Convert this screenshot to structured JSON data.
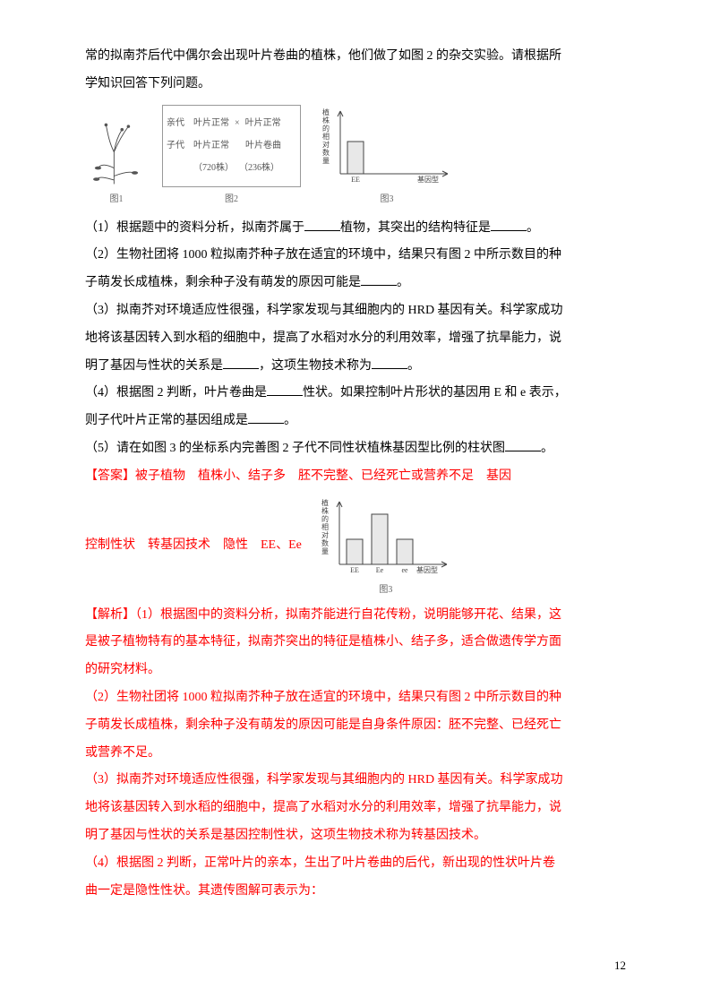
{
  "intro": {
    "line1": "常的拟南芥后代中偶尔会出现叶片卷曲的植株，他们做了如图 2 的杂交实验。请根据所",
    "line2": "学知识回答下列问题。"
  },
  "crossbox": {
    "parent_lbl": "亲代",
    "parent_l": "叶片正常",
    "x": "×",
    "parent_r": "叶片正常",
    "child_lbl": "子代",
    "child_l": "叶片正常",
    "child_r": "叶片卷曲",
    "count_l": "（720株）",
    "count_r": "（236株）"
  },
  "captions": {
    "fig1": "图1",
    "fig2": "图2",
    "fig3": "图3"
  },
  "chart1": {
    "ylabel_chars": [
      "植",
      "株",
      "的",
      "相",
      "对",
      "数",
      "量"
    ],
    "bars": [
      {
        "label": "EE",
        "h": 36
      }
    ],
    "xaxis_label": "基因型",
    "axis_color": "#444",
    "bar_fill": "#e8e8e8",
    "bar_stroke": "#444"
  },
  "chart2": {
    "ylabel_chars": [
      "植",
      "株",
      "的",
      "相",
      "对",
      "数",
      "量"
    ],
    "bars": [
      {
        "label": "EE",
        "h": 28
      },
      {
        "label": "Ee",
        "h": 56
      },
      {
        "label": "ee",
        "h": 28
      }
    ],
    "xaxis_label": "基因型",
    "axis_color": "#444",
    "bar_fill": "#e8e8e8",
    "bar_stroke": "#444"
  },
  "q": {
    "q1a": "（1）根据题中的资料分析，拟南芥属于",
    "q1b": "植物，其突出的结构特征是",
    "q1c": "。",
    "q2a": "（2）生物社团将 1000 粒拟南芥种子放在适宜的环境中，结果只有图 2 中所示数目的种",
    "q2b": "子萌发长成植株，剩余种子没有萌发的原因可能是",
    "q2c": "。",
    "q3a": "（3）拟南芥对环境适应性很强，科学家发现与其细胞内的 HRD 基因有关。科学家成功",
    "q3b": "地将该基因转入到水稻的细胞中，提高了水稻对水分的利用效率，增强了抗旱能力，说",
    "q3c": "明了基因与性状的关系是",
    "q3d": "，这项生物技术称为",
    "q3e": "。",
    "q4a": "（4）根据图 2 判断，叶片卷曲是",
    "q4b": "性状。如果控制叶片形状的基因用 E 和 e 表示，",
    "q4c": "则子代叶片正常的基因组成是",
    "q4d": "。",
    "q5a": "（5）请在如图 3 的坐标系内完善图 2 子代不同性状植株基因型比例的柱状图",
    "q5b": "。"
  },
  "ans": {
    "lead": "【答案】",
    "a1": "被子植物",
    "a2": "植株小、结子多",
    "a3": "胚不完整、已经死亡或营养不足",
    "a4": "基因",
    "line2a": "控制性状",
    "line2b": "转基因技术",
    "line2c": "隐性",
    "line2d": "EE、Ee"
  },
  "exp": {
    "lead": "【解析】",
    "e1a": "（1）根据图中的资料分析，拟南芥能进行自花传粉，说明能够开花、结果，这",
    "e1b": "是被子植物特有的基本特征，拟南芥突出的特征是植株小、结子多，适合做遗传学方面",
    "e1c": "的研究材料。",
    "e2a": "（2）生物社团将 1000 粒拟南芥种子放在适宜的环境中，结果只有图 2 中所示数目的种",
    "e2b": "子萌发长成植株，剩余种子没有萌发的原因可能是自身条件原因：胚不完整、已经死亡",
    "e2c": "或营养不足。",
    "e3a": "（3）拟南芥对环境适应性很强，科学家发现与其细胞内的 HRD 基因有关。科学家成功",
    "e3b": "地将该基因转入到水稻的细胞中，提高了水稻对水分的利用效率，增强了抗旱能力，说",
    "e3c": "明了基因与性状的关系是基因控制性状，这项生物技术称为转基因技术。",
    "e4a": "（4）根据图 2 判断，正常叶片的亲本，生出了叶片卷曲的后代，新出现的性状叶片卷",
    "e4b": "曲一定是隐性性状。其遗传图解可表示为："
  },
  "page_number": "12"
}
